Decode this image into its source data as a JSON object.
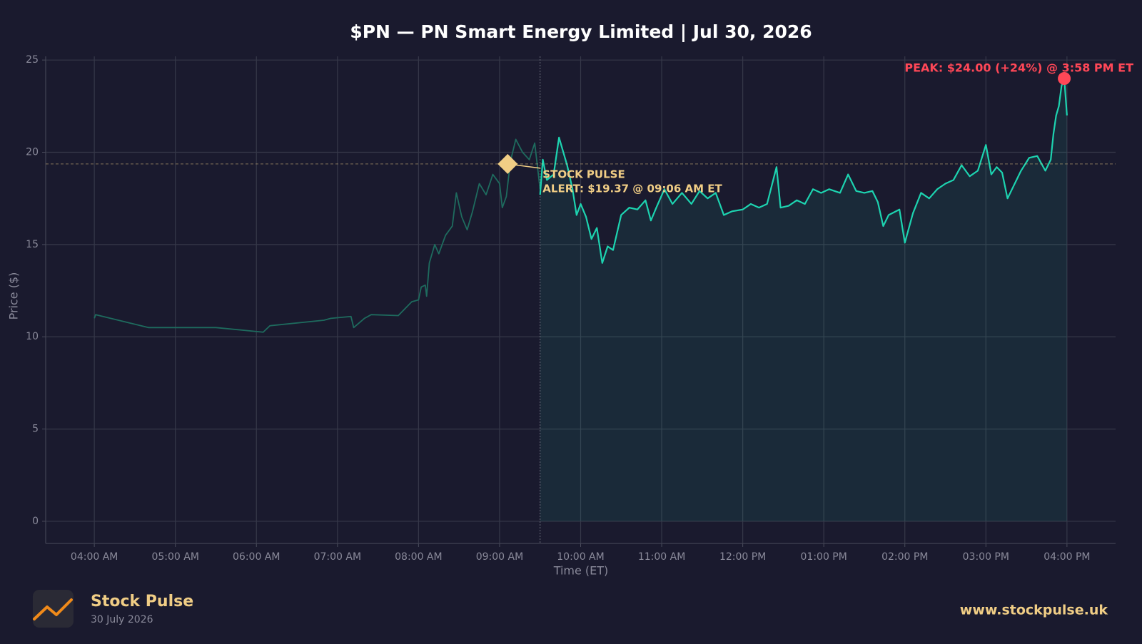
{
  "chart_data": {
    "type": "line",
    "title": "$PN — PN Smart Energy Limited  |  Jul 30, 2026",
    "xlabel": "Time (ET)",
    "ylabel": "Price ($)",
    "xlim": [
      "03:24",
      "16:36"
    ],
    "xticks": [
      {
        "value": "04:00",
        "label": "04:00 AM"
      },
      {
        "value": "05:00",
        "label": "05:00 AM"
      },
      {
        "value": "06:00",
        "label": "06:00 AM"
      },
      {
        "value": "07:00",
        "label": "07:00 AM"
      },
      {
        "value": "08:00",
        "label": "08:00 AM"
      },
      {
        "value": "09:00",
        "label": "09:00 AM"
      },
      {
        "value": "10:00",
        "label": "10:00 AM"
      },
      {
        "value": "11:00",
        "label": "11:00 AM"
      },
      {
        "value": "12:00",
        "label": "12:00 PM"
      },
      {
        "value": "13:00",
        "label": "01:00 PM"
      },
      {
        "value": "14:00",
        "label": "02:00 PM"
      },
      {
        "value": "15:00",
        "label": "03:00 PM"
      },
      {
        "value": "16:00",
        "label": "04:00 PM"
      }
    ],
    "ylim": [
      -1.2,
      25.2
    ],
    "yticks": [
      0,
      5,
      10,
      15,
      20,
      25
    ],
    "grid": true,
    "series": [
      {
        "color": "#1e6b5e",
        "fill": false,
        "x": [
          "04:00",
          "04:01",
          "04:40",
          "05:30",
          "06:05",
          "06:10",
          "06:50",
          "06:55",
          "07:10",
          "07:12",
          "07:20",
          "07:25",
          "07:45",
          "07:55",
          "08:00",
          "08:02",
          "08:05",
          "08:06",
          "08:08",
          "08:12",
          "08:15",
          "08:20",
          "08:25",
          "08:28",
          "08:32",
          "08:36",
          "08:40",
          "08:45",
          "08:50",
          "08:55",
          "09:00",
          "09:02",
          "09:05",
          "09:08",
          "09:12",
          "09:17",
          "09:22",
          "09:26",
          "09:30"
        ],
        "values": [
          11.0,
          11.2,
          10.5,
          10.5,
          10.25,
          10.6,
          10.9,
          11.0,
          11.1,
          10.5,
          11.0,
          11.2,
          11.15,
          11.9,
          12.0,
          12.7,
          12.8,
          12.2,
          14.0,
          15.0,
          14.5,
          15.5,
          16.0,
          17.8,
          16.5,
          15.8,
          16.8,
          18.3,
          17.7,
          18.8,
          18.3,
          17.0,
          17.6,
          19.5,
          20.7,
          20.0,
          19.6,
          20.5,
          18.0
        ]
      },
      {
        "color": "#1dd3b0",
        "fill": true,
        "x": [
          "09:30",
          "09:32",
          "09:35",
          "09:40",
          "09:44",
          "09:50",
          "09:54",
          "09:57",
          "10:00",
          "10:04",
          "10:08",
          "10:12",
          "10:16",
          "10:20",
          "10:24",
          "10:30",
          "10:36",
          "10:42",
          "10:48",
          "10:52",
          "10:56",
          "11:02",
          "11:08",
          "11:15",
          "11:22",
          "11:28",
          "11:34",
          "11:40",
          "11:46",
          "11:52",
          "12:00",
          "12:06",
          "12:12",
          "12:18",
          "12:25",
          "12:28",
          "12:34",
          "12:40",
          "12:46",
          "12:52",
          "12:58",
          "13:04",
          "13:12",
          "13:18",
          "13:24",
          "13:30",
          "13:36",
          "13:40",
          "13:44",
          "13:48",
          "13:56",
          "14:00",
          "14:06",
          "14:12",
          "14:18",
          "14:24",
          "14:30",
          "14:36",
          "14:42",
          "14:48",
          "14:54",
          "15:00",
          "15:04",
          "15:08",
          "15:12",
          "15:16",
          "15:20",
          "15:26",
          "15:32",
          "15:38",
          "15:44",
          "15:48",
          "15:50",
          "15:52",
          "15:54",
          "15:56",
          "15:58",
          "16:00"
        ],
        "values": [
          17.7,
          19.6,
          18.5,
          18.8,
          20.8,
          19.3,
          18.0,
          16.6,
          17.2,
          16.5,
          15.3,
          15.9,
          14.0,
          14.9,
          14.7,
          16.6,
          17.0,
          16.9,
          17.4,
          16.3,
          17.0,
          18.0,
          17.2,
          17.8,
          17.2,
          17.9,
          17.5,
          17.8,
          16.6,
          16.8,
          16.9,
          17.2,
          17.0,
          17.2,
          19.2,
          17.0,
          17.1,
          17.4,
          17.2,
          18.0,
          17.8,
          18.0,
          17.8,
          18.8,
          17.9,
          17.8,
          17.9,
          17.3,
          16.0,
          16.6,
          16.9,
          15.1,
          16.7,
          17.8,
          17.5,
          18.0,
          18.3,
          18.5,
          19.3,
          18.7,
          19.0,
          20.4,
          18.8,
          19.2,
          18.9,
          17.5,
          18.1,
          19.0,
          19.7,
          19.8,
          19.0,
          19.6,
          21.0,
          22.0,
          22.5,
          23.6,
          24.0,
          22.0
        ]
      }
    ],
    "alert": {
      "x": "09:06",
      "y": 19.37,
      "color": "#f0cd85",
      "label": [
        "STOCK PULSE",
        "ALERT: $19.37 @ 09:06 AM ET"
      ]
    },
    "peak": {
      "x": "15:58",
      "y": 24.0,
      "color": "#ff4757",
      "label": "PEAK: $24.00 (+24%) @ 3:58 PM ET"
    }
  },
  "footer": {
    "brand": "Stock Pulse",
    "date": "30 July 2026",
    "url": "www.stockpulse.uk"
  }
}
